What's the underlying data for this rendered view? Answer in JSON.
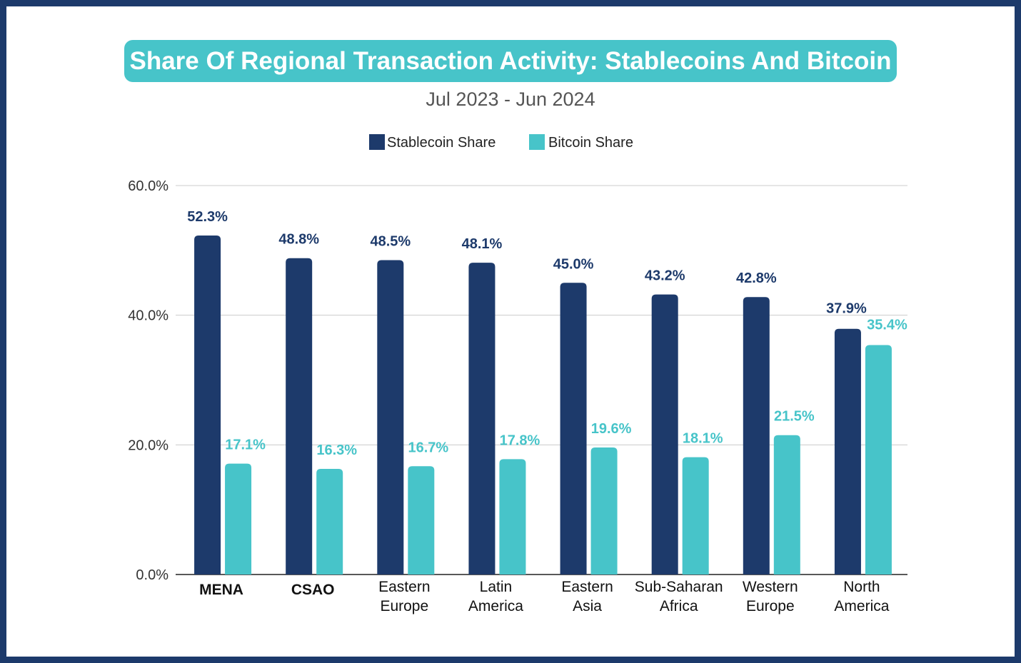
{
  "chart_data": {
    "type": "bar",
    "title": "Share Of Regional Transaction Activity: Stablecoins And Bitcoin",
    "subtitle": "Jul 2023 - Jun 2024",
    "categories": [
      [
        "MENA"
      ],
      [
        "CSAO"
      ],
      [
        "Eastern",
        "Europe"
      ],
      [
        "Latin",
        "America"
      ],
      [
        "Eastern",
        "Asia"
      ],
      [
        "Sub-Saharan",
        "Africa"
      ],
      [
        "Western",
        "Europe"
      ],
      [
        "North",
        "America"
      ]
    ],
    "series": [
      {
        "name": "Stablecoin Share",
        "color": "#1d3a6b",
        "values": [
          52.3,
          48.8,
          48.5,
          48.1,
          45.0,
          43.2,
          42.8,
          37.9
        ],
        "labels": [
          "52.3%",
          "48.8%",
          "48.5%",
          "48.1%",
          "45.0%",
          "43.2%",
          "42.8%",
          "37.9%"
        ]
      },
      {
        "name": "Bitcoin Share",
        "color": "#47c4c9",
        "values": [
          17.1,
          16.3,
          16.7,
          17.8,
          19.6,
          18.1,
          21.5,
          35.4
        ],
        "labels": [
          "17.1%",
          "16.3%",
          "16.7%",
          "17.8%",
          "19.6%",
          "18.1%",
          "21.5%",
          "35.4%"
        ]
      }
    ],
    "yticks": [
      0,
      20,
      40,
      60
    ],
    "ytick_labels": [
      "0.0%",
      "20.0%",
      "40.0%",
      "60.0%"
    ],
    "ylim": [
      0,
      60
    ],
    "grid": true,
    "legend": "top-center"
  }
}
